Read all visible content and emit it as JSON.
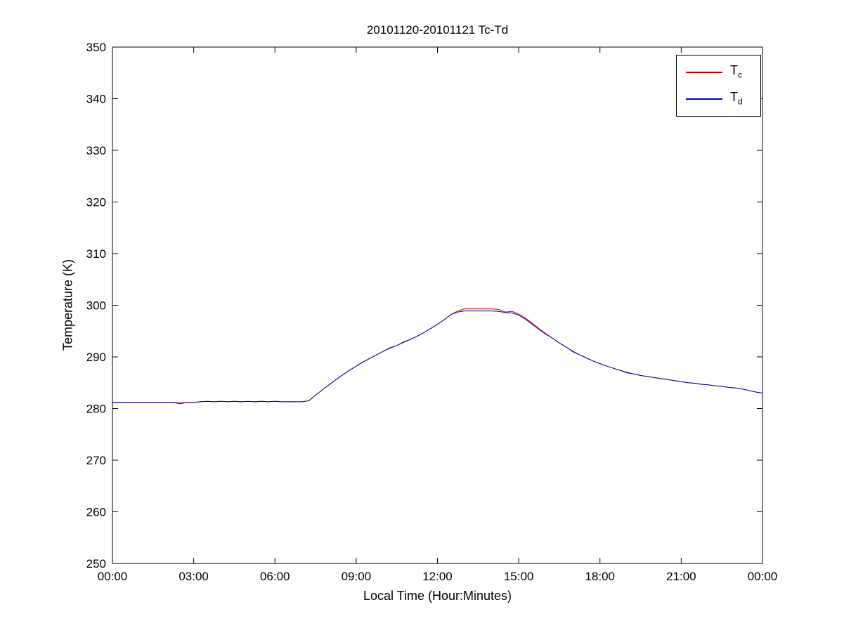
{
  "page": {
    "background": "#ffffff"
  },
  "chart_data": {
    "type": "line",
    "title": "20101120-20101121 Tc-Td",
    "xlabel": "Local Time (Hour:Minutes)",
    "ylabel": "Temperature (K)",
    "x_unit": "hours",
    "xlim": [
      0,
      24
    ],
    "ylim": [
      250,
      350
    ],
    "grid": false,
    "legend_position": "top-right",
    "yticks": [
      250,
      260,
      270,
      280,
      290,
      300,
      310,
      320,
      330,
      340,
      350
    ],
    "xticks": [
      {
        "h": 0,
        "label": "00:00"
      },
      {
        "h": 3,
        "label": "03:00"
      },
      {
        "h": 6,
        "label": "06:00"
      },
      {
        "h": 9,
        "label": "09:00"
      },
      {
        "h": 12,
        "label": "12:00"
      },
      {
        "h": 15,
        "label": "15:00"
      },
      {
        "h": 18,
        "label": "18:00"
      },
      {
        "h": 21,
        "label": "21:00"
      },
      {
        "h": 24,
        "label": "00:00"
      }
    ],
    "x": [
      0,
      0.25,
      0.5,
      0.75,
      1,
      1.25,
      1.5,
      1.75,
      2,
      2.25,
      2.5,
      2.75,
      3,
      3.25,
      3.5,
      3.75,
      4,
      4.25,
      4.5,
      4.75,
      5,
      5.25,
      5.5,
      5.75,
      6,
      6.25,
      6.5,
      6.75,
      7,
      7.25,
      7.5,
      7.75,
      8,
      8.25,
      8.5,
      8.75,
      9,
      9.25,
      9.5,
      9.75,
      10,
      10.25,
      10.5,
      10.75,
      11,
      11.25,
      11.5,
      11.75,
      12,
      12.25,
      12.5,
      12.75,
      13,
      13.25,
      13.5,
      13.75,
      14,
      14.25,
      14.5,
      14.75,
      15,
      15.25,
      15.5,
      15.75,
      16,
      16.25,
      16.5,
      16.75,
      17,
      17.25,
      17.5,
      17.75,
      18,
      18.25,
      18.5,
      18.75,
      19,
      19.25,
      19.5,
      19.75,
      20,
      20.25,
      20.5,
      20.75,
      21,
      21.25,
      21.5,
      21.75,
      22,
      22.25,
      22.5,
      22.75,
      23,
      23.25,
      23.5,
      23.75,
      24
    ],
    "series": [
      {
        "id": "tc",
        "name": "Tc",
        "legend_main": "T",
        "legend_sub": "c",
        "color": "#cc0000",
        "values": [
          281.2,
          281.2,
          281.2,
          281.2,
          281.2,
          281.2,
          281.2,
          281.2,
          281.2,
          281.2,
          281.1,
          281.2,
          281.2,
          281.3,
          281.4,
          281.3,
          281.4,
          281.3,
          281.4,
          281.3,
          281.4,
          281.3,
          281.4,
          281.3,
          281.4,
          281.3,
          281.3,
          281.3,
          281.3,
          281.5,
          282.6,
          283.6,
          284.6,
          285.6,
          286.5,
          287.4,
          288.2,
          289,
          289.7,
          290.4,
          291.1,
          291.7,
          292.2,
          292.8,
          293.4,
          294,
          294.7,
          295.5,
          296.3,
          297.2,
          298.2,
          298.9,
          299.3,
          299.3,
          299.3,
          299.3,
          299.3,
          299.2,
          298.7,
          298.8,
          298.3,
          297.5,
          296.5,
          295.5,
          294.5,
          293.6,
          292.7,
          291.9,
          291.1,
          290.4,
          289.8,
          289.2,
          288.7,
          288.2,
          287.8,
          287.4,
          287,
          286.7,
          286.4,
          286.2,
          286,
          285.8,
          285.6,
          285.4,
          285.2,
          285,
          284.9,
          284.7,
          284.6,
          284.4,
          284.3,
          284.1,
          284,
          283.8,
          283.5,
          283.2,
          283
        ]
      },
      {
        "id": "td",
        "name": "Td",
        "legend_main": "T",
        "legend_sub": "d",
        "color": "#0000bb",
        "values": [
          281.2,
          281.2,
          281.2,
          281.2,
          281.2,
          281.2,
          281.2,
          281.2,
          281.2,
          281.2,
          280.9,
          281.2,
          281.2,
          281.3,
          281.4,
          281.3,
          281.4,
          281.3,
          281.4,
          281.3,
          281.4,
          281.3,
          281.4,
          281.3,
          281.4,
          281.3,
          281.3,
          281.3,
          281.3,
          281.5,
          282.6,
          283.6,
          284.6,
          285.6,
          286.5,
          287.4,
          288.2,
          289,
          289.7,
          290.4,
          291.1,
          291.8,
          292.2,
          292.9,
          293.4,
          294,
          294.7,
          295.5,
          296.3,
          297.2,
          298.2,
          298.7,
          298.9,
          298.9,
          298.9,
          298.9,
          298.9,
          298.8,
          298.6,
          298.5,
          298.1,
          297.3,
          296.3,
          295.3,
          294.4,
          293.6,
          292.7,
          291.9,
          291,
          290.4,
          289.8,
          289.2,
          288.7,
          288.2,
          287.8,
          287.4,
          286.9,
          286.7,
          286.4,
          286.2,
          286,
          285.8,
          285.6,
          285.4,
          285.2,
          285,
          284.9,
          284.7,
          284.6,
          284.4,
          284.3,
          284.1,
          284,
          283.8,
          283.5,
          283.2,
          283
        ]
      }
    ]
  }
}
